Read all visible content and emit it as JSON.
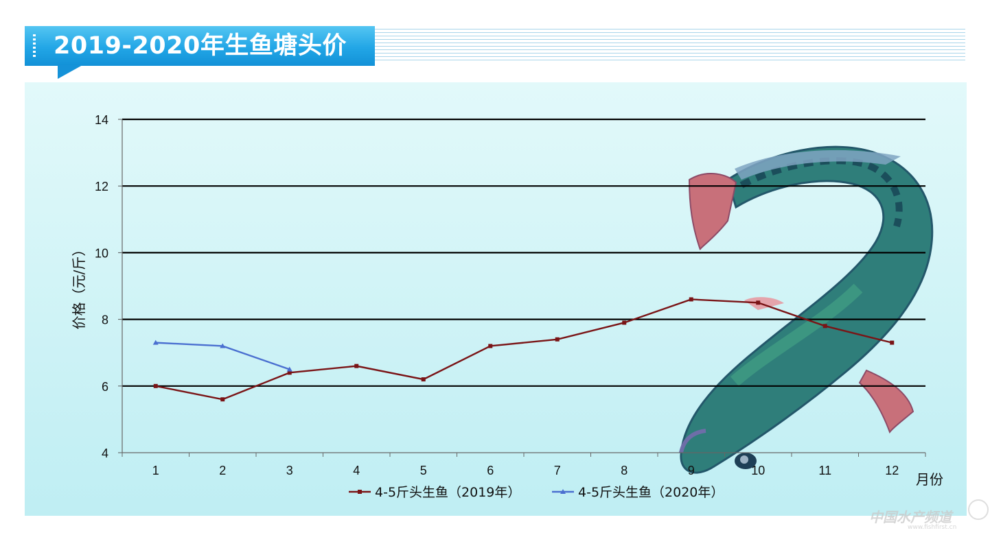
{
  "page": {
    "title": "2019-2020年生鱼塘头价",
    "watermark": "中国水产频道",
    "watermark_sub": "www.fishfirst.cn"
  },
  "colors": {
    "banner": "#22a6e6",
    "panel_top": "#e2f9fa",
    "panel_bottom": "#bfeef3",
    "series_2019": "#7a1416",
    "series_2020": "#4a6fd0"
  },
  "chart_data": {
    "type": "line",
    "title": "2019-2020年生鱼塘头价",
    "ylabel": "价格（元/斤）",
    "xlabel": "月份",
    "categories": [
      "1",
      "2",
      "3",
      "4",
      "5",
      "6",
      "7",
      "8",
      "9",
      "10",
      "11",
      "12"
    ],
    "ylim": [
      4,
      14
    ],
    "yticks": [
      4,
      6,
      8,
      10,
      12,
      14
    ],
    "grid": true,
    "legend_position": "bottom",
    "series": [
      {
        "name": "4-5斤头生鱼（2019年）",
        "marker": "square",
        "color": "#7a1416",
        "values": [
          6.0,
          5.6,
          6.4,
          6.6,
          6.2,
          7.2,
          7.4,
          7.9,
          8.6,
          8.5,
          7.8,
          7.3
        ]
      },
      {
        "name": "4-5斤头生鱼（2020年）",
        "marker": "triangle",
        "color": "#4a6fd0",
        "values": [
          7.3,
          7.2,
          6.5,
          null,
          null,
          null,
          null,
          null,
          null,
          null,
          null,
          null
        ]
      }
    ]
  }
}
